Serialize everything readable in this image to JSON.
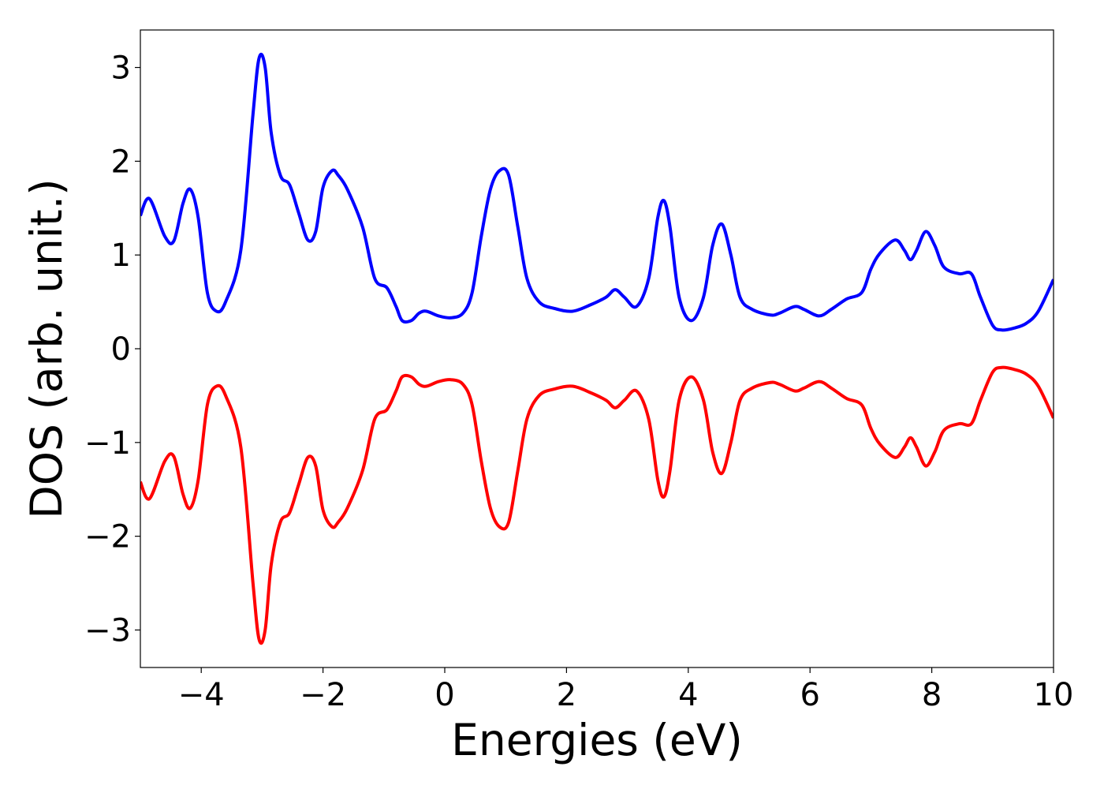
{
  "chart_data": {
    "type": "line",
    "title": "",
    "xlabel": "Energies (eV)",
    "ylabel": "DOS (arb. unit.)",
    "xlim": [
      -5,
      10
    ],
    "ylim": [
      -3.4,
      3.4
    ],
    "xticks": [
      -4,
      -2,
      0,
      2,
      4,
      6,
      8,
      10
    ],
    "yticks": [
      -3,
      -2,
      -1,
      0,
      1,
      2,
      3
    ],
    "xtick_labels": [
      "−4",
      "−2",
      "0",
      "2",
      "4",
      "6",
      "8",
      "10"
    ],
    "ytick_labels": [
      "−3",
      "−2",
      "−1",
      "0",
      "1",
      "2",
      "3"
    ],
    "grid": false,
    "legend": false,
    "series": [
      {
        "color": "#0000ff",
        "x": [
          -5.0,
          -4.85,
          -4.6,
          -4.45,
          -4.3,
          -4.18,
          -4.05,
          -3.9,
          -3.75,
          -3.6,
          -3.35,
          -3.15,
          -3.05,
          -2.95,
          -2.85,
          -2.7,
          -2.55,
          -2.4,
          -2.25,
          -2.12,
          -2.0,
          -1.85,
          -1.75,
          -1.6,
          -1.35,
          -1.15,
          -0.95,
          -0.8,
          -0.7,
          -0.55,
          -0.42,
          -0.3,
          -0.1,
          0.1,
          0.3,
          0.45,
          0.6,
          0.75,
          0.9,
          1.05,
          1.2,
          1.35,
          1.55,
          1.8,
          2.1,
          2.4,
          2.65,
          2.8,
          2.95,
          3.15,
          3.35,
          3.5,
          3.6,
          3.7,
          3.85,
          4.05,
          4.25,
          4.4,
          4.55,
          4.7,
          4.85,
          5.05,
          5.35,
          5.5,
          5.75,
          5.9,
          6.15,
          6.35,
          6.6,
          6.85,
          7.0,
          7.15,
          7.4,
          7.55,
          7.65,
          7.75,
          7.9,
          8.05,
          8.2,
          8.45,
          8.65,
          8.8,
          9.0,
          9.15,
          9.35,
          9.55,
          9.75,
          10.0
        ],
        "y": [
          1.42,
          1.6,
          1.2,
          1.15,
          1.55,
          1.7,
          1.4,
          0.6,
          0.4,
          0.5,
          1.05,
          2.5,
          3.1,
          3.0,
          2.3,
          1.85,
          1.75,
          1.45,
          1.16,
          1.25,
          1.72,
          1.9,
          1.85,
          1.7,
          1.3,
          0.75,
          0.65,
          0.45,
          0.3,
          0.3,
          0.38,
          0.4,
          0.35,
          0.33,
          0.38,
          0.6,
          1.2,
          1.7,
          1.9,
          1.85,
          1.3,
          0.75,
          0.5,
          0.43,
          0.4,
          0.47,
          0.55,
          0.63,
          0.55,
          0.45,
          0.75,
          1.4,
          1.58,
          1.3,
          0.55,
          0.3,
          0.55,
          1.1,
          1.33,
          1.0,
          0.55,
          0.42,
          0.36,
          0.38,
          0.45,
          0.42,
          0.35,
          0.42,
          0.53,
          0.6,
          0.85,
          1.02,
          1.16,
          1.05,
          0.95,
          1.05,
          1.25,
          1.1,
          0.87,
          0.8,
          0.8,
          0.55,
          0.25,
          0.2,
          0.22,
          0.27,
          0.4,
          0.74
        ]
      },
      {
        "color": "#ff0000",
        "x": [
          -5.0,
          -4.85,
          -4.6,
          -4.45,
          -4.3,
          -4.18,
          -4.05,
          -3.9,
          -3.75,
          -3.6,
          -3.35,
          -3.15,
          -3.05,
          -2.95,
          -2.85,
          -2.7,
          -2.55,
          -2.4,
          -2.25,
          -2.12,
          -2.0,
          -1.85,
          -1.75,
          -1.6,
          -1.35,
          -1.15,
          -0.95,
          -0.8,
          -0.7,
          -0.55,
          -0.42,
          -0.3,
          -0.1,
          0.1,
          0.3,
          0.45,
          0.6,
          0.75,
          0.9,
          1.05,
          1.2,
          1.35,
          1.55,
          1.8,
          2.1,
          2.4,
          2.65,
          2.8,
          2.95,
          3.15,
          3.35,
          3.5,
          3.6,
          3.7,
          3.85,
          4.05,
          4.25,
          4.4,
          4.55,
          4.7,
          4.85,
          5.05,
          5.35,
          5.5,
          5.75,
          5.9,
          6.15,
          6.35,
          6.6,
          6.85,
          7.0,
          7.15,
          7.4,
          7.55,
          7.65,
          7.75,
          7.9,
          8.05,
          8.2,
          8.45,
          8.65,
          8.8,
          9.0,
          9.15,
          9.35,
          9.55,
          9.75,
          10.0
        ],
        "y": [
          -1.42,
          -1.6,
          -1.2,
          -1.15,
          -1.55,
          -1.7,
          -1.4,
          -0.6,
          -0.4,
          -0.5,
          -1.05,
          -2.5,
          -3.1,
          -3.0,
          -2.3,
          -1.85,
          -1.75,
          -1.45,
          -1.16,
          -1.25,
          -1.72,
          -1.9,
          -1.85,
          -1.7,
          -1.3,
          -0.75,
          -0.65,
          -0.45,
          -0.3,
          -0.3,
          -0.38,
          -0.4,
          -0.35,
          -0.33,
          -0.38,
          -0.6,
          -1.2,
          -1.7,
          -1.9,
          -1.85,
          -1.3,
          -0.75,
          -0.5,
          -0.43,
          -0.4,
          -0.47,
          -0.55,
          -0.63,
          -0.55,
          -0.45,
          -0.75,
          -1.4,
          -1.58,
          -1.3,
          -0.55,
          -0.3,
          -0.55,
          -1.1,
          -1.33,
          -1.0,
          -0.55,
          -0.42,
          -0.36,
          -0.38,
          -0.45,
          -0.42,
          -0.35,
          -0.42,
          -0.53,
          -0.6,
          -0.85,
          -1.02,
          -1.16,
          -1.05,
          -0.95,
          -1.05,
          -1.25,
          -1.1,
          -0.87,
          -0.8,
          -0.8,
          -0.55,
          -0.25,
          -0.2,
          -0.22,
          -0.27,
          -0.4,
          -0.74
        ]
      }
    ]
  }
}
